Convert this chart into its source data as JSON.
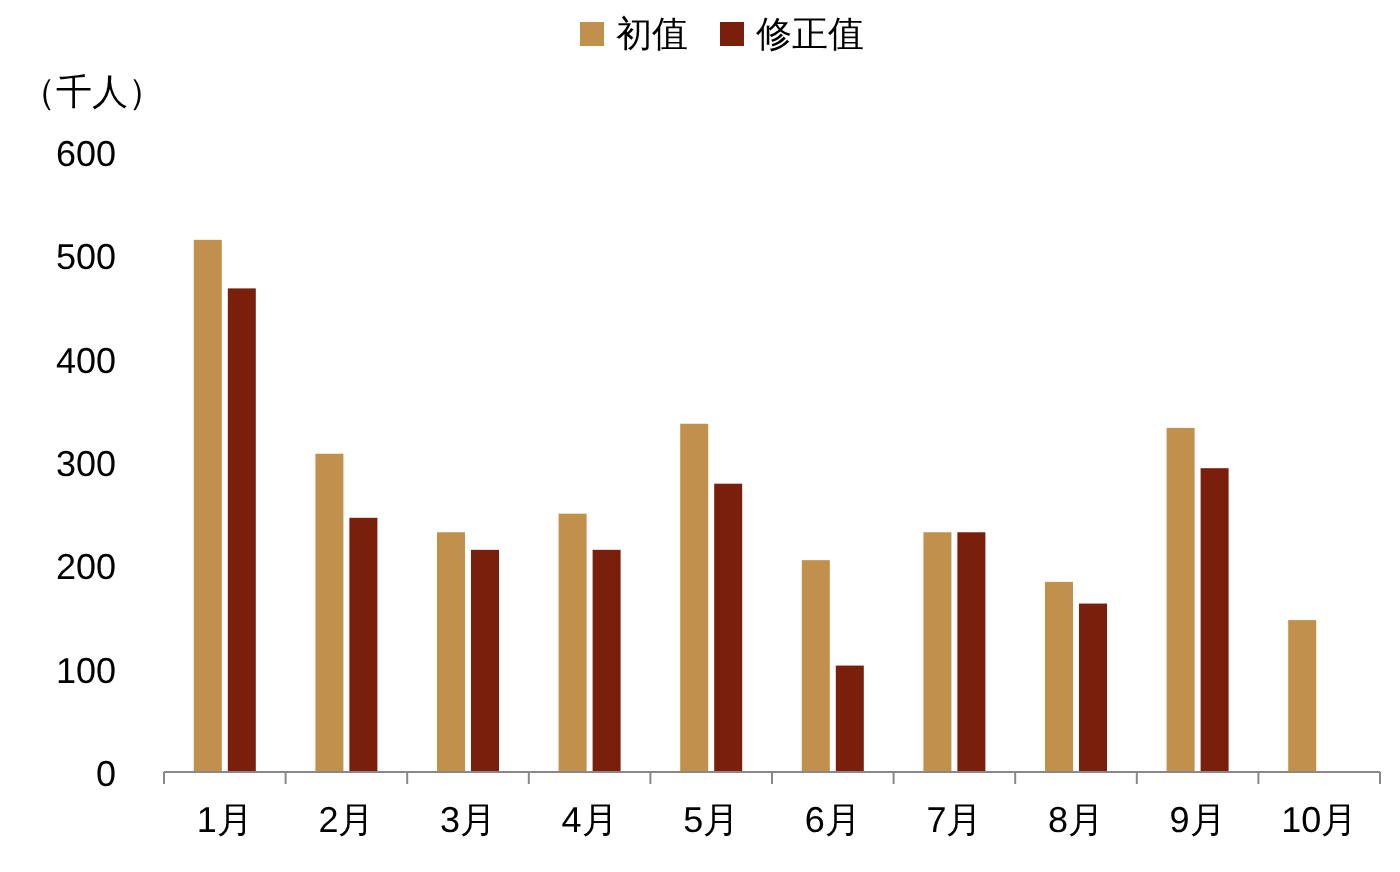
{
  "chart_data": {
    "type": "bar",
    "ylabel": "（千人）",
    "categories": [
      "1月",
      "2月",
      "3月",
      "4月",
      "5月",
      "6月",
      "7月",
      "8月",
      "9月",
      "10月"
    ],
    "series": [
      {
        "name": "初值",
        "color": "#c0904c",
        "values": [
          515,
          308,
          232,
          250,
          337,
          205,
          232,
          184,
          333,
          147
        ]
      },
      {
        "name": "修正值",
        "color": "#7a1f0c",
        "values": [
          468,
          246,
          215,
          215,
          279,
          103,
          232,
          163,
          294,
          null
        ]
      }
    ],
    "ylim": [
      0,
      600
    ],
    "yticks": [
      0,
      100,
      200,
      300,
      400,
      500,
      600
    ],
    "grid": false,
    "legend": "top"
  }
}
